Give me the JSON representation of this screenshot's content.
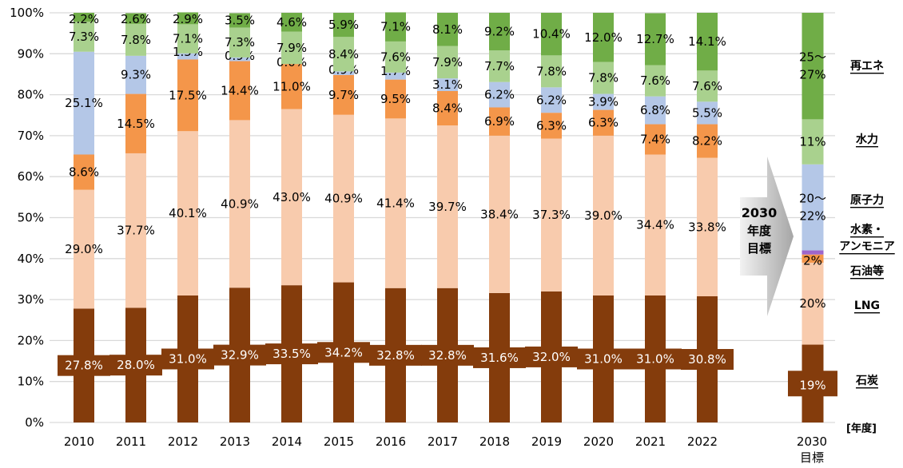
{
  "chart_data": {
    "type": "bar",
    "stacked": true,
    "title": "",
    "xlabel": "[年度]",
    "ylabel": "",
    "ylim": [
      0,
      100
    ],
    "yticks": [
      "0%",
      "10%",
      "20%",
      "30%",
      "40%",
      "50%",
      "60%",
      "70%",
      "80%",
      "90%",
      "100%"
    ],
    "grid": true,
    "categories": [
      "2010",
      "2011",
      "2012",
      "2013",
      "2014",
      "2015",
      "2016",
      "2017",
      "2018",
      "2019",
      "2020",
      "2021",
      "2022"
    ],
    "series": [
      {
        "name": "石炭",
        "color": "#843C0C",
        "values": [
          27.8,
          28.0,
          31.0,
          32.9,
          33.5,
          34.2,
          32.8,
          32.8,
          31.6,
          32.0,
          31.0,
          31.0,
          30.8
        ]
      },
      {
        "name": "LNG",
        "color": "#F8CBAD",
        "values": [
          29.0,
          37.7,
          40.1,
          40.9,
          43.0,
          40.9,
          41.4,
          39.7,
          38.4,
          37.3,
          39.0,
          34.4,
          33.8
        ]
      },
      {
        "name": "石油等",
        "color": "#F4964A",
        "values": [
          8.6,
          14.5,
          17.5,
          14.4,
          11.0,
          9.7,
          9.5,
          8.4,
          6.9,
          6.3,
          6.3,
          7.4,
          8.2
        ]
      },
      {
        "name": "原子力",
        "color": "#B4C7E7",
        "values": [
          25.1,
          9.3,
          1.5,
          0.9,
          0.0,
          0.9,
          1.7,
          3.1,
          6.2,
          6.2,
          3.9,
          6.8,
          5.5
        ]
      },
      {
        "name": "水力",
        "color": "#A9D18E",
        "values": [
          7.3,
          7.8,
          7.1,
          7.3,
          7.9,
          8.4,
          7.6,
          7.9,
          7.7,
          7.8,
          7.8,
          7.6,
          7.6
        ]
      },
      {
        "name": "再エネ",
        "color": "#70AD47",
        "values": [
          2.2,
          2.6,
          2.9,
          3.5,
          4.6,
          5.9,
          7.1,
          8.1,
          9.2,
          10.4,
          12.0,
          12.7,
          14.1
        ]
      }
    ],
    "target": {
      "category_line1": "2030",
      "category_line2": "目標",
      "arrow_text": [
        "2030",
        "年度",
        "目標"
      ],
      "segments": [
        {
          "name": "石炭",
          "label": "19%",
          "value": 19,
          "color": "#843C0C",
          "legend": "石炭"
        },
        {
          "name": "LNG",
          "label": "20%",
          "value": 20,
          "color": "#F8CBAD",
          "legend": "LNG"
        },
        {
          "name": "石油等",
          "label": "2%",
          "value": 2,
          "color": "#F4964A",
          "legend": "石油等"
        },
        {
          "name": "水素・アンモニア",
          "label": "1%",
          "value": 1,
          "color": "#9E66CC",
          "legend_line1": "水素・",
          "legend_line2": "アンモニア"
        },
        {
          "name": "原子力",
          "label_line1": "20～",
          "label_line2": "22%",
          "range": [
            20,
            22
          ],
          "value": 21,
          "color": "#B4C7E7",
          "legend": "原子力"
        },
        {
          "name": "水力",
          "label": "11%",
          "value": 11,
          "color": "#A9D18E",
          "legend": "水力"
        },
        {
          "name": "再エネ",
          "label_line1": "25～",
          "label_line2": "27%",
          "range": [
            25,
            27
          ],
          "value": 26,
          "color": "#70AD47",
          "legend": "再エネ"
        }
      ]
    }
  }
}
